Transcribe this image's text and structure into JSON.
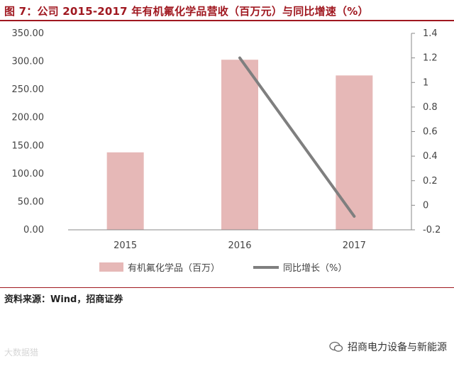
{
  "title": "图 7：公司 2015-2017 年有机氟化学品营收（百万元）与同比增速（%）",
  "source": "资料来源：Wind，招商证券",
  "watermark_left": "大数据猎",
  "watermark_right": "招商电力设备与新能源",
  "colors": {
    "bar": "#e6b8b7",
    "line": "#7f7f7f",
    "accent": "#a01820"
  },
  "chart_data": {
    "type": "bar",
    "categories": [
      "2015",
      "2016",
      "2017"
    ],
    "series": [
      {
        "name": "有机氟化学品（百万）",
        "type": "bar",
        "axis": "left",
        "values": [
          138,
          303,
          275
        ]
      },
      {
        "name": "同比增长（%）",
        "type": "line",
        "axis": "right",
        "values": [
          null,
          1.2,
          -0.09
        ]
      }
    ],
    "y_left": {
      "min": 0,
      "max": 350,
      "step": 50,
      "ticks": [
        "0.00",
        "50.00",
        "100.00",
        "150.00",
        "200.00",
        "250.00",
        "300.00",
        "350.00"
      ]
    },
    "y_right": {
      "min": -0.2,
      "max": 1.4,
      "step": 0.2,
      "ticks": [
        "-0.2",
        "0",
        "0.2",
        "0.4",
        "0.6",
        "0.8",
        "1",
        "1.2",
        "1.4"
      ]
    },
    "grid": false,
    "legend_position": "bottom"
  }
}
